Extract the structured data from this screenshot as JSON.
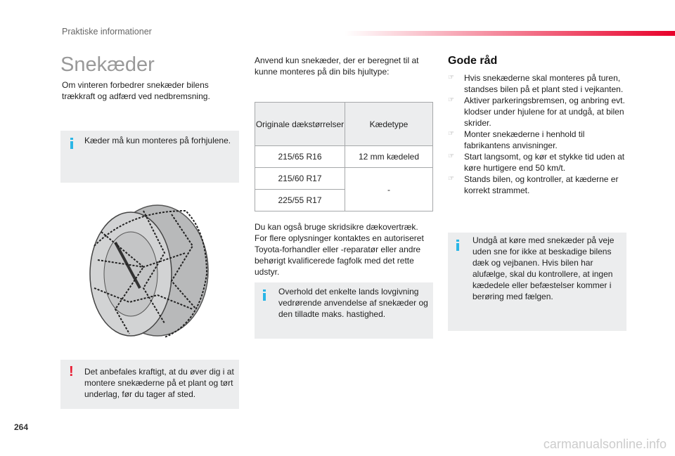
{
  "header": {
    "section": "Praktiske informationer",
    "accent": "#e8002a"
  },
  "title": "Snekæder",
  "intro": "Om vinteren forbedrer snekæder bilens trækkraft og adfærd ved nedbremsning.",
  "info_front": "Kæder må kun monteres på forhjulene.",
  "warning": "Det anbefales kraftigt, at du øver dig i at montere snekæderne på et plant og tørt underlag, før du tager af sted.",
  "middle": {
    "intro": "Anvend kun snekæder, der er beregnet til at kunne monteres på din bils hjultype:",
    "table": {
      "headers": [
        "Originale dækstørrelser",
        "Kædetype"
      ],
      "rows": [
        [
          "215/65 R16",
          "12 mm kædeled"
        ],
        [
          "215/60 R17",
          "-"
        ],
        [
          "225/55 R17",
          ""
        ]
      ]
    },
    "covers": "Du kan også bruge skridsikre dækovertræk. For flere oplysninger kontaktes en autoriseret Toyota-forhandler eller -reparatør eller andre behørigt kvalificerede fagfolk med det rette udstyr.",
    "info_law": "Overhold det enkelte lands lovgivning vedrørende anvendelse af snekæder og den tilladte maks. hastighed."
  },
  "tips": {
    "title": "Gode råd",
    "bullet_icon": "pointing-hand-icon",
    "items": [
      "Hvis snekæderne skal monteres på turen, standses bilen på et plant sted i vejkanten.",
      "Aktiver parkeringsbremsen, og anbring evt. klodser under hjulene for at undgå, at bilen skrider.",
      "Monter snekæderne i henhold til fabrikantens anvisninger.",
      "Start langsomt, og kør et stykke tid uden at køre hurtigere end 50 km/t.",
      "Stands bilen, og kontroller, at kæderne er korrekt strammet."
    ]
  },
  "info_road": "Undgå at køre med snekæder på veje uden sne for ikke at beskadige bilens dæk og vejbanen. Hvis bilen har alufælge, skal du kontrollere, at ingen kædedele eller befæstelser kommer i berøring med fælgen.",
  "page_number": "264",
  "watermark": "carmanualsonline.info",
  "colors": {
    "info": "#2bb6e6",
    "warning": "#e8192f",
    "box": "#ecedee"
  }
}
